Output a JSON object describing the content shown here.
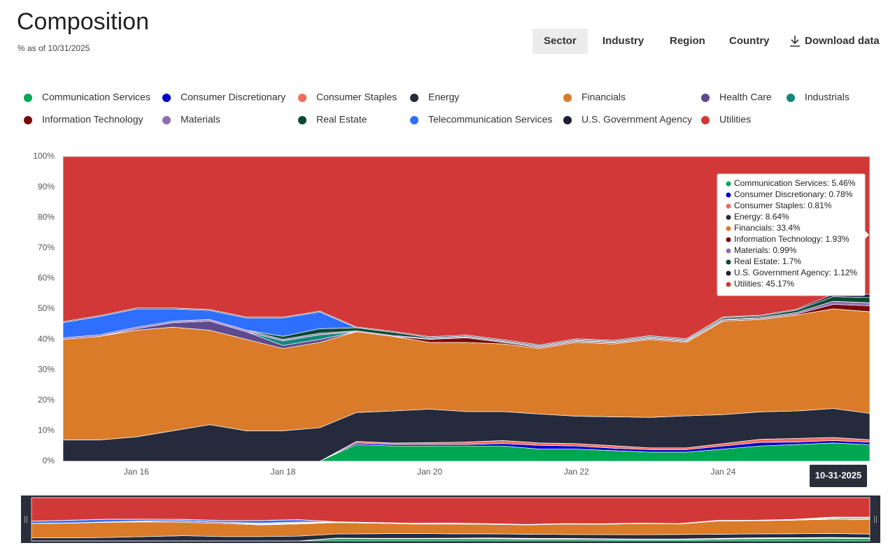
{
  "header": {
    "title": "Composition",
    "subtitle": "% as of 10/31/2025"
  },
  "tabs": [
    "Sector",
    "Industry",
    "Region",
    "Country"
  ],
  "download": "Download data",
  "tooltip": [
    "Communication Services: 5.46%",
    "Consumer Discretionary: 0.78%",
    "Consumer Staples: 0.81%",
    "Energy: 8.64%",
    "Financials: 33.4%",
    "Information Technology: 1.93%",
    "Materials: 0.99%",
    "Real Estate: 1.7%",
    "U.S. Government Agency: 1.12%",
    "Utilities: 45.17%"
  ],
  "chart_data": {
    "type": "stacked_area",
    "categories": [
      null,
      null,
      "Jan 16",
      null,
      null,
      null,
      "Jan 18",
      null,
      null,
      null,
      "Jan 20",
      null,
      null,
      null,
      "Jan 22",
      null,
      null,
      null,
      "Jan 24",
      null,
      null,
      null,
      "10-31-2025"
    ],
    "ylim": [
      0,
      100
    ],
    "yticks": [
      {
        "value": 0,
        "label": "0%"
      },
      {
        "value": 10,
        "label": "10%"
      },
      {
        "value": 20,
        "label": "20%"
      },
      {
        "value": 30,
        "label": "30%"
      },
      {
        "value": 40,
        "label": "40%"
      },
      {
        "value": 50,
        "label": "50%"
      },
      {
        "value": 60,
        "label": "60%"
      },
      {
        "value": 70,
        "label": "70%"
      },
      {
        "value": 80,
        "label": "80%"
      },
      {
        "value": 90,
        "label": "90%"
      },
      {
        "value": 100,
        "label": "100%"
      }
    ],
    "grid": false,
    "series": [
      {
        "name": "Communication Services",
        "color": "#00a651",
        "values": [
          0,
          0,
          0,
          0,
          0,
          0,
          0,
          0,
          5.5,
          5,
          5,
          5,
          5,
          4,
          4,
          3.5,
          3,
          3,
          4,
          5,
          5.5,
          6,
          5.46
        ]
      },
      {
        "name": "Consumer Discretionary",
        "color": "#0000c8",
        "values": [
          0,
          0,
          0,
          0,
          0,
          0,
          0,
          0,
          0.5,
          0.5,
          0.5,
          0.5,
          0.8,
          1.2,
          1,
          0.8,
          0.8,
          0.8,
          1,
          1.2,
          0.8,
          0.8,
          0.78
        ]
      },
      {
        "name": "Consumer Staples",
        "color": "#f26a5a",
        "values": [
          0,
          0,
          0,
          0,
          0,
          0,
          0,
          0,
          0.5,
          0.5,
          0.6,
          0.8,
          1,
          0.8,
          0.8,
          0.8,
          0.6,
          0.6,
          0.8,
          1,
          1.2,
          1,
          0.81
        ]
      },
      {
        "name": "Energy",
        "color": "#252a3d",
        "values": [
          7,
          7,
          8,
          10,
          12,
          10,
          10,
          11,
          9.5,
          10.5,
          11,
          10,
          9.5,
          9.5,
          9,
          9.5,
          10,
          10.5,
          9.5,
          9,
          9,
          9.5,
          8.64
        ]
      },
      {
        "name": "Financials",
        "color": "#d97b29",
        "values": [
          33,
          34,
          35,
          34,
          31,
          30,
          27,
          28,
          26.5,
          24.5,
          21.9,
          22.7,
          22.2,
          21.5,
          24.2,
          23.9,
          25.6,
          24.1,
          30.7,
          30.3,
          31.5,
          32.7,
          33.4
        ]
      },
      {
        "name": "Health Care",
        "color": "#5e4a8e",
        "values": [
          0,
          0,
          0.5,
          1.5,
          3,
          2.5,
          1,
          1,
          0,
          0,
          0,
          0,
          0,
          0,
          0,
          0,
          0,
          0,
          0,
          0,
          0,
          0,
          0
        ]
      },
      {
        "name": "Industrials",
        "color": "#12877a",
        "values": [
          0,
          0,
          0,
          0,
          0,
          0,
          1.5,
          1.5,
          0,
          0,
          0,
          0,
          0,
          0,
          0,
          0,
          0,
          0,
          0,
          0,
          0,
          0,
          0
        ]
      },
      {
        "name": "Information Technology",
        "color": "#7a0a0a",
        "values": [
          0,
          0,
          0,
          0,
          0,
          0,
          0,
          0,
          0,
          0,
          1,
          1.5,
          0.5,
          0.3,
          0.3,
          0.3,
          0.3,
          0.3,
          0.3,
          0.3,
          0.3,
          1.5,
          1.93
        ]
      },
      {
        "name": "Materials",
        "color": "#8e6db0",
        "values": [
          0.5,
          0.5,
          0.5,
          0.5,
          0.5,
          0.5,
          0.5,
          0.5,
          0.3,
          0.3,
          0.3,
          0.3,
          0.3,
          0.3,
          0.3,
          0.3,
          0.3,
          0.3,
          0.3,
          0.3,
          0.5,
          1,
          0.99
        ]
      },
      {
        "name": "Real Estate",
        "color": "#0b4a32",
        "values": [
          0,
          0,
          0,
          0,
          0,
          0,
          1,
          1.5,
          1,
          1,
          0.3,
          0.3,
          0.3,
          0.3,
          0.3,
          0.3,
          0.3,
          0.3,
          0.5,
          0.5,
          0.8,
          1.5,
          1.7
        ]
      },
      {
        "name": "Telecommunication Services",
        "color": "#2f6fff",
        "values": [
          5,
          6,
          6,
          4,
          3,
          4,
          6,
          5.5,
          0,
          0,
          0,
          0,
          0,
          0,
          0,
          0,
          0,
          0,
          0,
          0,
          0,
          0,
          0
        ]
      },
      {
        "name": "U.S. Government Agency",
        "color": "#1e1e3c",
        "values": [
          0.3,
          0.3,
          0.3,
          0.3,
          0.3,
          0.3,
          0.3,
          0.3,
          0.3,
          0.3,
          0.3,
          0.3,
          0.3,
          0.3,
          0.3,
          0.3,
          0.3,
          0.3,
          0.3,
          0.3,
          0.3,
          0.8,
          1.12
        ]
      },
      {
        "name": "Utilities",
        "color": "#d23838",
        "values": [
          54.2,
          52.2,
          49.7,
          49.7,
          50.2,
          52.7,
          52.7,
          50.7,
          55.9,
          57.4,
          59.1,
          58.6,
          60.1,
          61.8,
          59.8,
          60.3,
          58.8,
          59.8,
          52.6,
          52.1,
          50.1,
          45.2,
          45.17
        ]
      }
    ]
  }
}
